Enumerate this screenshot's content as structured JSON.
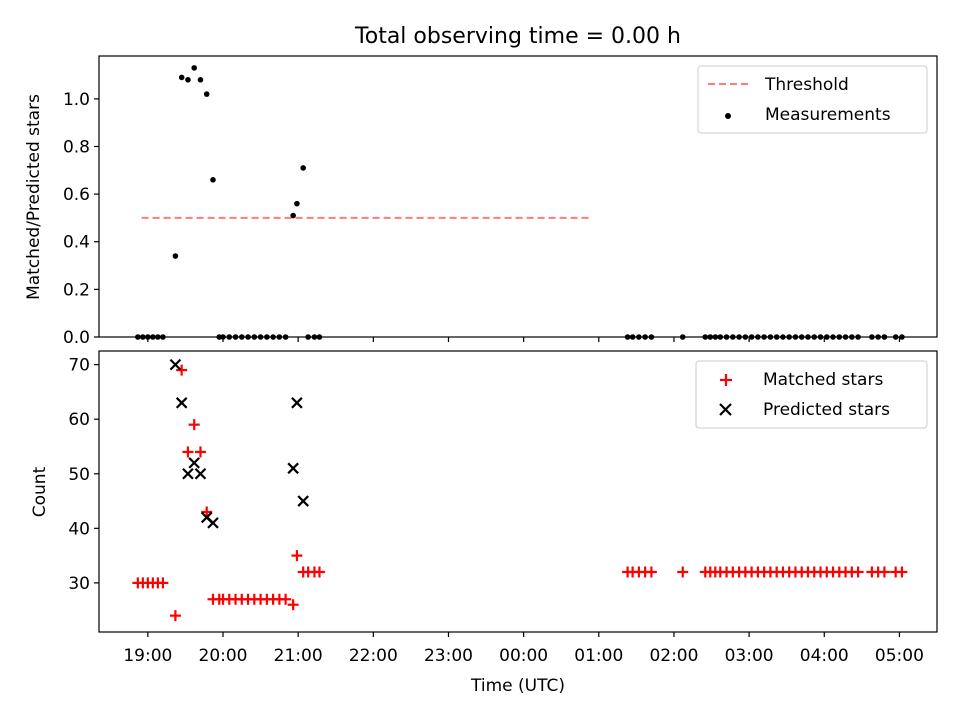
{
  "chart_data": [
    {
      "type": "scatter",
      "title": "Total observing time = 0.00 h",
      "ylabel": "Matched/Predicted stars",
      "xlabel": "",
      "ylim": [
        0,
        1.18
      ],
      "yticks": [
        "0.0",
        "0.2",
        "0.4",
        "0.6",
        "0.8",
        "1.0"
      ],
      "grid": false,
      "legend_position": "top-right",
      "colors": {
        "threshold": "#ff7b7b",
        "measurements": "#000000"
      },
      "threshold": {
        "name": "Threshold",
        "x": [
          "18:55",
          "24:55"
        ],
        "y": 0.5
      },
      "series": [
        {
          "name": "Measurements",
          "x": [
            "18:52",
            "18:56",
            "19:00",
            "19:04",
            "19:08",
            "19:12",
            "19:22",
            "19:27",
            "19:32",
            "19:37",
            "19:42",
            "19:47",
            "19:52",
            "19:57",
            "20:00",
            "20:05",
            "20:10",
            "20:15",
            "20:20",
            "20:25",
            "20:30",
            "20:35",
            "20:40",
            "20:45",
            "20:50",
            "20:56",
            "20:59",
            "21:04",
            "21:08",
            "21:13",
            "21:17",
            "25:23",
            "25:27",
            "25:32",
            "25:37",
            "25:42",
            "26:07",
            "26:25",
            "26:29",
            "26:33",
            "26:37",
            "26:42",
            "26:47",
            "26:52",
            "26:57",
            "27:02",
            "27:07",
            "27:12",
            "27:17",
            "27:22",
            "27:27",
            "27:32",
            "27:37",
            "27:42",
            "27:47",
            "27:52",
            "27:57",
            "28:02",
            "28:07",
            "28:12",
            "28:17",
            "28:22",
            "28:27",
            "28:38",
            "28:43",
            "28:48",
            "28:57",
            "29:02"
          ],
          "y": [
            0,
            0,
            0,
            0,
            0,
            0,
            0.34,
            1.09,
            1.08,
            1.13,
            1.08,
            1.02,
            0.66,
            0,
            0,
            0,
            0,
            0,
            0,
            0,
            0,
            0,
            0,
            0,
            0,
            0.51,
            0.56,
            0.71,
            0,
            0,
            0,
            0,
            0,
            0,
            0,
            0,
            0,
            0,
            0,
            0,
            0,
            0,
            0,
            0,
            0,
            0,
            0,
            0,
            0,
            0,
            0,
            0,
            0,
            0,
            0,
            0,
            0,
            0,
            0,
            0,
            0,
            0,
            0,
            0,
            0,
            0,
            0,
            0
          ]
        }
      ]
    },
    {
      "type": "scatter",
      "title": "",
      "ylabel": "Count",
      "xlabel": "Time (UTC)",
      "ylim": [
        21,
        72.5
      ],
      "yticks": [
        "30",
        "40",
        "50",
        "60",
        "70"
      ],
      "xticks": [
        "19:00",
        "20:00",
        "21:00",
        "22:00",
        "23:00",
        "00:00",
        "01:00",
        "02:00",
        "03:00",
        "04:00",
        "05:00"
      ],
      "x_range_hours": [
        18.35,
        29.5
      ],
      "grid": false,
      "legend_position": "top-right",
      "colors": {
        "matched": "#ff0000",
        "predicted": "#000000"
      },
      "series": [
        {
          "name": "Matched stars",
          "marker": "plus",
          "x": [
            "18:52",
            "18:56",
            "19:00",
            "19:04",
            "19:08",
            "19:12",
            "19:22",
            "19:27",
            "19:32",
            "19:37",
            "19:42",
            "19:47",
            "19:52",
            "19:57",
            "20:00",
            "20:05",
            "20:10",
            "20:15",
            "20:20",
            "20:25",
            "20:30",
            "20:35",
            "20:40",
            "20:45",
            "20:50",
            "20:56",
            "20:59",
            "21:04",
            "21:08",
            "21:13",
            "21:17",
            "25:23",
            "25:27",
            "25:32",
            "25:37",
            "25:42",
            "26:07",
            "26:25",
            "26:29",
            "26:33",
            "26:37",
            "26:42",
            "26:47",
            "26:52",
            "26:57",
            "27:02",
            "27:07",
            "27:12",
            "27:17",
            "27:22",
            "27:27",
            "27:32",
            "27:37",
            "27:42",
            "27:47",
            "27:52",
            "27:57",
            "28:02",
            "28:07",
            "28:12",
            "28:17",
            "28:22",
            "28:27",
            "28:38",
            "28:43",
            "28:48",
            "28:57",
            "29:02"
          ],
          "y": [
            30,
            30,
            30,
            30,
            30,
            30,
            24,
            69,
            54,
            59,
            54,
            43,
            27,
            27,
            27,
            27,
            27,
            27,
            27,
            27,
            27,
            27,
            27,
            27,
            27,
            26,
            35,
            32,
            32,
            32,
            32,
            32,
            32,
            32,
            32,
            32,
            32,
            32,
            32,
            32,
            32,
            32,
            32,
            32,
            32,
            32,
            32,
            32,
            32,
            32,
            32,
            32,
            32,
            32,
            32,
            32,
            32,
            32,
            32,
            32,
            32,
            32,
            32,
            32,
            32,
            32,
            32,
            32
          ]
        },
        {
          "name": "Predicted stars",
          "marker": "x",
          "x": [
            "19:22",
            "19:27",
            "19:32",
            "19:37",
            "19:42",
            "19:47",
            "19:52",
            "20:56",
            "20:59",
            "21:04"
          ],
          "y": [
            70,
            63,
            50,
            52,
            50,
            42,
            41,
            51,
            63,
            45
          ]
        }
      ]
    }
  ]
}
